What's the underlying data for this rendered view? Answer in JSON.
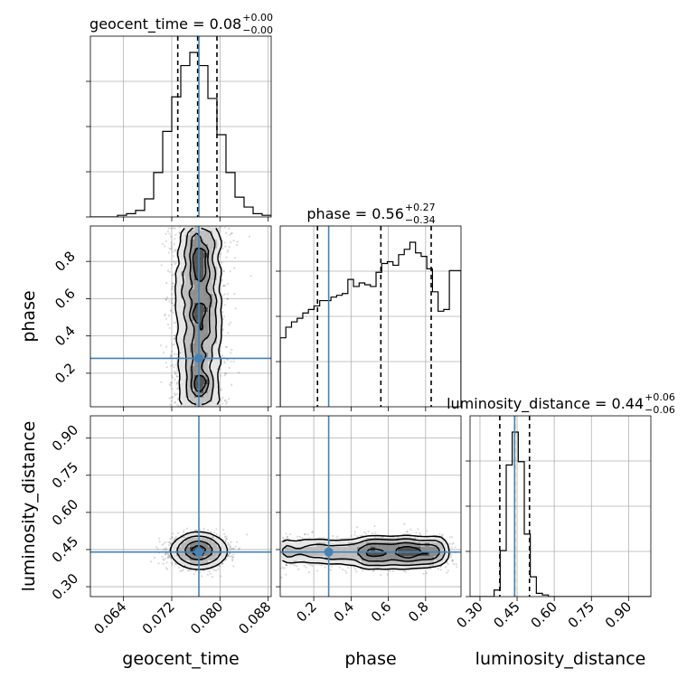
{
  "chart_data": {
    "type": "corner",
    "parameters": [
      "geocent_time",
      "phase",
      "luminosity_distance"
    ],
    "axis_labels": {
      "geocent_time": "geocent_time",
      "phase": "phase",
      "luminosity_distance": "luminosity_distance"
    },
    "ranges": {
      "geocent_time": [
        0.0585,
        0.0885
      ],
      "phase": [
        0.02,
        0.99
      ],
      "luminosity_distance": [
        0.26,
        0.99
      ]
    },
    "ticks": {
      "geocent_time": [
        0.064,
        0.072,
        0.08,
        0.088
      ],
      "phase": [
        0.2,
        0.4,
        0.6,
        0.8
      ],
      "luminosity_distance": [
        0.3,
        0.45,
        0.6,
        0.75,
        0.9
      ]
    },
    "tick_labels": {
      "geocent_time": [
        "0.064",
        "0.072",
        "0.080",
        "0.088"
      ],
      "phase": [
        "0.2",
        "0.4",
        "0.6",
        "0.8"
      ],
      "luminosity_distance": [
        "0.30",
        "0.45",
        "0.60",
        "0.75",
        "0.90"
      ]
    },
    "titles": {
      "geocent_time": {
        "main": "geocent_time = 0.08",
        "sup": "+0.00",
        "sub": "−0.00"
      },
      "phase": {
        "main": "phase = 0.56",
        "sup": "+0.27",
        "sub": "−0.34"
      },
      "luminosity_distance": {
        "main": "luminosity_distance = 0.44",
        "sup": "+0.06",
        "sub": "−0.06"
      }
    },
    "truths": {
      "geocent_time": 0.0765,
      "phase": 0.28,
      "luminosity_distance": 0.44
    },
    "quantiles": {
      "geocent_time": [
        0.073,
        0.0763,
        0.0795
      ],
      "phase": [
        0.22,
        0.56,
        0.83
      ],
      "luminosity_distance": [
        0.38,
        0.44,
        0.5
      ]
    },
    "histograms": {
      "geocent_time": {
        "edges": [
          0.0585,
          0.06,
          0.0615,
          0.063,
          0.0645,
          0.066,
          0.0675,
          0.069,
          0.0705,
          0.072,
          0.0735,
          0.075,
          0.0765,
          0.078,
          0.0795,
          0.081,
          0.0825,
          0.084,
          0.0855,
          0.087,
          0.0885
        ],
        "counts": [
          0,
          0,
          0,
          1,
          2,
          4,
          11,
          27,
          52,
          73,
          92,
          100,
          92,
          72,
          50,
          27,
          12,
          6,
          2,
          1
        ]
      },
      "phase": {
        "edges": [
          0.02,
          0.0502,
          0.0805,
          0.1108,
          0.141,
          0.1712,
          0.2015,
          0.2318,
          0.262,
          0.2922,
          0.3225,
          0.3528,
          0.383,
          0.4132,
          0.4435,
          0.4738,
          0.504,
          0.5342,
          0.5645,
          0.5948,
          0.625,
          0.6552,
          0.6855,
          0.7158,
          0.746,
          0.7762,
          0.8065,
          0.8368,
          0.867,
          0.8972,
          0.9275,
          0.9578,
          0.99
        ],
        "counts": [
          39,
          45,
          48,
          50,
          53,
          55,
          57,
          60,
          60,
          62,
          63,
          64,
          72,
          68,
          70,
          69,
          68,
          76,
          81,
          82,
          80,
          86,
          89,
          93,
          87,
          85,
          78,
          65,
          54,
          55,
          77,
          77
        ]
      },
      "luminosity_distance": {
        "edges": [
          0.26,
          0.2843,
          0.3087,
          0.333,
          0.3573,
          0.3817,
          0.406,
          0.4303,
          0.4547,
          0.479,
          0.5033,
          0.5277,
          0.552,
          0.5763,
          0.6007,
          0.625,
          0.6493,
          0.6737,
          0.698,
          0.7223,
          0.7467,
          0.771,
          0.7953,
          0.8197,
          0.844,
          0.8683,
          0.8927,
          0.917,
          0.9413,
          0.9657,
          0.99
        ],
        "counts": [
          0,
          0,
          0,
          0,
          4,
          28,
          80,
          100,
          82,
          38,
          12,
          2,
          1,
          0,
          0,
          0,
          0,
          0,
          0,
          0,
          0,
          0,
          0,
          0,
          0,
          0,
          0,
          0,
          0,
          0
        ]
      }
    },
    "pairs": [
      {
        "x": "geocent_time",
        "y": "phase",
        "x_center": 0.0765,
        "x_sd": 0.0022,
        "y_uniform": [
          0.02,
          0.99
        ]
      },
      {
        "x": "geocent_time",
        "y": "luminosity_distance",
        "x_center": 0.0765,
        "x_sd": 0.0022,
        "y_center": 0.445,
        "y_sd": 0.03
      },
      {
        "x": "phase",
        "y": "luminosity_distance",
        "x_uniform": [
          0.02,
          0.99
        ],
        "y_center": 0.44,
        "y_sd": 0.03
      }
    ],
    "grid": true,
    "truth_color": "#4682b4"
  }
}
